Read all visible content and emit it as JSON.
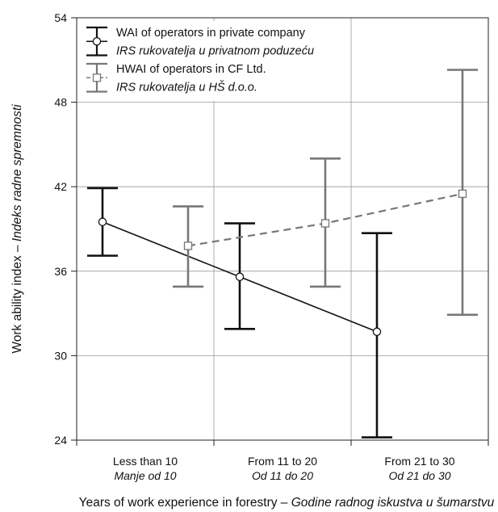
{
  "chart_data": {
    "type": "line",
    "title": "",
    "xlabel": "Years of work experience in forestry",
    "xlabel_alt": "Godine radnog iskustva u šumarstvu",
    "xlabel_separator": " – ",
    "ylabel": "Work ability index",
    "ylabel_alt": "Indeks radne spremnosti",
    "ylabel_separator": " – ",
    "categories": [
      "Less than 10",
      "From 11 to 20",
      "From 21 to 30"
    ],
    "categories_alt": [
      "Manje od 10",
      "Od 11 do 20",
      "Od 21 do 30"
    ],
    "ylim": [
      24,
      54
    ],
    "yticks": [
      24,
      30,
      36,
      42,
      48,
      54
    ],
    "grid": true,
    "legend_position": "top-left",
    "series": [
      {
        "name": "WAI of operators in private company",
        "name_alt": "IRS rukovatelja u privatnom poduzeću",
        "color": "#111111",
        "line_style": "solid",
        "marker": "circle",
        "values": [
          39.5,
          35.6,
          31.7
        ],
        "error_low": [
          37.1,
          31.9,
          24.2
        ],
        "error_high": [
          41.9,
          39.4,
          38.7
        ]
      },
      {
        "name": "HWAI of operators in CF Ltd.",
        "name_alt": "IRS rukovatelja u HŠ d.o.o.",
        "color": "#777777",
        "line_style": "dashed",
        "marker": "square",
        "values": [
          37.8,
          39.4,
          41.5
        ],
        "error_low": [
          34.9,
          34.9,
          32.9
        ],
        "error_high": [
          40.6,
          44.0,
          50.3
        ]
      }
    ]
  }
}
